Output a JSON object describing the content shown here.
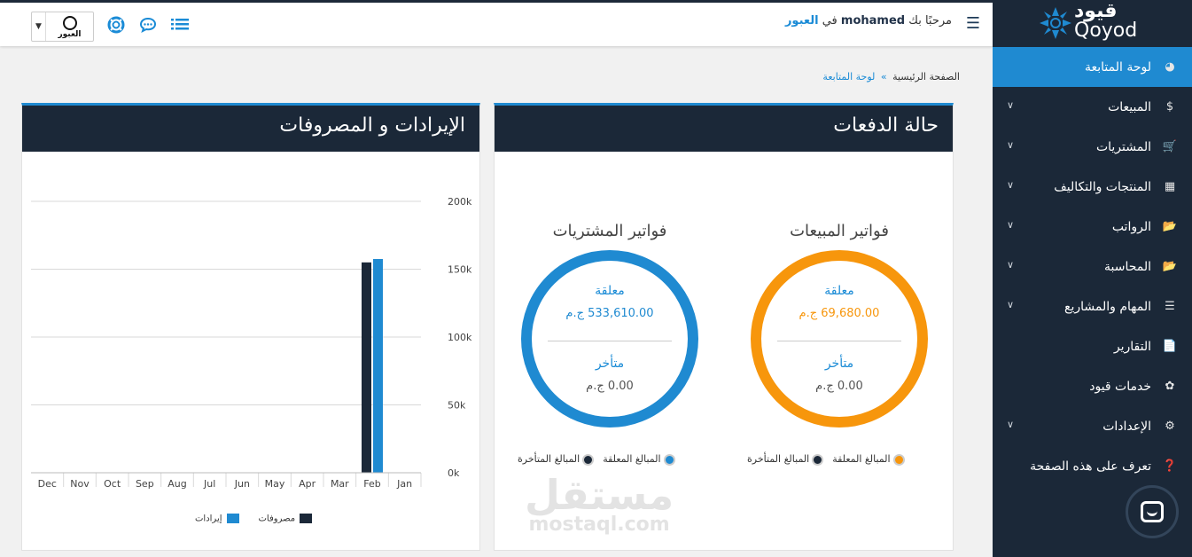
{
  "topbar": {
    "welcome_prefix": "مرحبًا بك",
    "user": "mohamed",
    "in_word": "في",
    "company": "العبور",
    "company_logo_text": "العبور",
    "icons": [
      "hamburger-icon",
      "list-icon",
      "chat-icon",
      "support-icon"
    ]
  },
  "brand": {
    "arabic": "قيود",
    "latin": "Qoyod"
  },
  "sidebar": {
    "items": [
      {
        "label": "لوحة المتابعة",
        "icon": "dashboard-icon",
        "active": true,
        "expandable": false
      },
      {
        "label": "المبيعات",
        "icon": "dollar-icon",
        "active": false,
        "expandable": true
      },
      {
        "label": "المشتريات",
        "icon": "cart-icon",
        "active": false,
        "expandable": true
      },
      {
        "label": "المنتجات والتكاليف",
        "icon": "grid-icon",
        "active": false,
        "expandable": true
      },
      {
        "label": "الرواتب",
        "icon": "folder-open-icon",
        "active": false,
        "expandable": true
      },
      {
        "label": "المحاسبة",
        "icon": "folder-open-icon",
        "active": false,
        "expandable": true
      },
      {
        "label": "المهام والمشاريع",
        "icon": "list-icon",
        "active": false,
        "expandable": true
      },
      {
        "label": "التقارير",
        "icon": "file-icon",
        "active": false,
        "expandable": false
      },
      {
        "label": "خدمات قيود",
        "icon": "services-icon",
        "active": false,
        "expandable": false
      },
      {
        "label": "الإعدادات",
        "icon": "gear-icon",
        "active": false,
        "expandable": true
      },
      {
        "label": "تعرف على هذه الصفحة",
        "icon": "help-icon",
        "active": false,
        "expandable": false
      }
    ]
  },
  "breadcrumb": {
    "home": "الصفحة الرئيسية",
    "separator": "»",
    "current": "لوحة المتابعة"
  },
  "payments_panel": {
    "title": "حالة الدفعات",
    "sales": {
      "title": "فواتير المبيعات",
      "color": "#f7960c",
      "pending_label": "معلقة",
      "pending_value": "69,680.00 ج.م",
      "overdue_label": "متأخر",
      "overdue_value": "0.00 ج.م",
      "legend_pending": "المبالغ المعلقة",
      "legend_overdue": "المبالغ المتأخرة"
    },
    "purchases": {
      "title": "فواتير المشتريات",
      "color": "#1f8ad1",
      "pending_label": "معلقة",
      "pending_value": "533,610.00 ج.م",
      "overdue_label": "متأخر",
      "overdue_value": "0.00 ج.م",
      "legend_pending": "المبالغ المعلقة",
      "legend_overdue": "المبالغ المتأخرة"
    }
  },
  "revenue_panel": {
    "title": "الإيرادات و المصروفات"
  },
  "watermark": {
    "arabic": "مستقل",
    "latin": "mostaql.com"
  },
  "chart_data": {
    "type": "bar",
    "categories": [
      "Jan",
      "Feb",
      "Mar",
      "Apr",
      "May",
      "Jun",
      "Jul",
      "Aug",
      "Sep",
      "Oct",
      "Nov",
      "Dec"
    ],
    "series": [
      {
        "name": "مصروفات",
        "color": "#1b2838",
        "values": [
          0,
          155000,
          0,
          0,
          0,
          0,
          0,
          0,
          0,
          0,
          0,
          0
        ]
      },
      {
        "name": "إيرادات",
        "color": "#1f8ad1",
        "values": [
          0,
          157500,
          0,
          0,
          0,
          0,
          0,
          0,
          0,
          0,
          0,
          0
        ]
      }
    ],
    "yticks": [
      "0k",
      "50k",
      "100k",
      "150k",
      "200k"
    ],
    "ylim": [
      0,
      200000
    ],
    "x_axis_order": "right-to-left",
    "y_axis_side": "right",
    "grid": true,
    "legend": "bottom"
  }
}
